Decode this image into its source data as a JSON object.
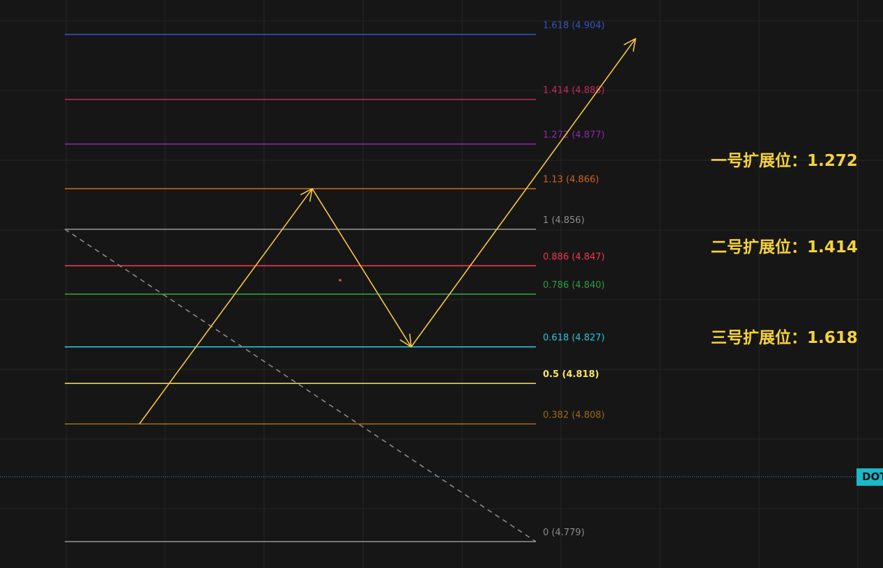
{
  "chart_data": {
    "type": "line",
    "title": "",
    "xlabel": "",
    "ylabel": "",
    "ylim": [
      4.7725,
      4.9125
    ],
    "grid": true,
    "fib_levels": [
      {
        "ratio": "1.618",
        "price": 4.904,
        "label": "1.618 (4.904)",
        "color": "#2f56c0"
      },
      {
        "ratio": "1.414",
        "price": 4.888,
        "label": "1.414 (4.888)",
        "color": "#c42a5a"
      },
      {
        "ratio": "1.272",
        "price": 4.877,
        "label": "1.272 (4.877)",
        "color": "#8a2aa8"
      },
      {
        "ratio": "1.13",
        "price": 4.866,
        "label": "1.13 (4.866)",
        "color": "#c9661c"
      },
      {
        "ratio": "1",
        "price": 4.856,
        "label": "1 (4.856)",
        "color": "#8c8c8c"
      },
      {
        "ratio": "0.886",
        "price": 4.847,
        "label": "0.886 (4.847)",
        "color": "#f0394a"
      },
      {
        "ratio": "0.786",
        "price": 4.84,
        "label": "0.786 (4.840)",
        "color": "#2e9e3a"
      },
      {
        "ratio": "0.618",
        "price": 4.827,
        "label": "0.618 (4.827)",
        "color": "#27c7dc"
      },
      {
        "ratio": "0.5",
        "price": 4.818,
        "label": "0.5 (4.818)",
        "color": "#f5e46a"
      },
      {
        "ratio": "0.382",
        "price": 4.808,
        "label": "0.382 (4.808)",
        "color": "#9c6a16"
      },
      {
        "ratio": "0",
        "price": 4.779,
        "label": "0 (4.779)",
        "color": "#8c8c8c"
      }
    ],
    "trend_line": {
      "from_price": 4.856,
      "to_price": 4.779,
      "style": "dashed",
      "color": "#8a8a8a"
    },
    "path_arrows": {
      "color": "#f5c842",
      "prices": [
        4.808,
        4.866,
        4.827,
        4.903
      ]
    },
    "current_price_line": {
      "color": "#27c7dc",
      "style": "dotted"
    }
  },
  "annotations": [
    {
      "text": "一号扩展位：1.272"
    },
    {
      "text": "二号扩展位：1.414"
    },
    {
      "text": "三号扩展位：1.618"
    }
  ],
  "symbol_tag": {
    "text": "DOT",
    "color": "#1bb8c9"
  }
}
